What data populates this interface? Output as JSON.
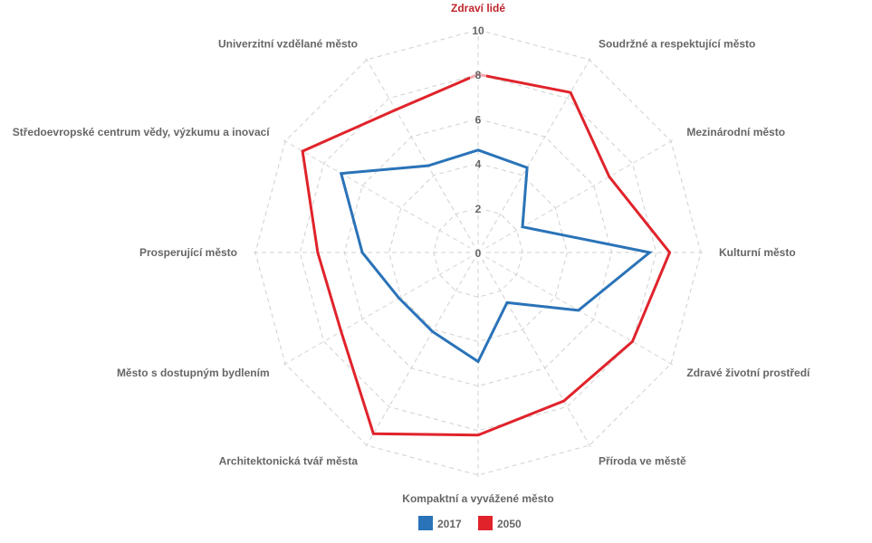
{
  "chart_data": {
    "type": "radar",
    "title": "",
    "axes": [
      "Zdraví lidé",
      "Soudržné a respektující město",
      "Mezinárodní město",
      "Kulturní město",
      "Zdravé životní prostředí",
      "Příroda ve městě",
      "Kompaktní a vyvážené město",
      "Architektonická tvář města",
      "Město s dostupným bydlením",
      "Prosperující město",
      "Středoevropské centrum vědy, výzkumu a inovací",
      "Univerzitní vzdělané město"
    ],
    "highlighted_axis_color": "#c0262d",
    "rlim": [
      0,
      10
    ],
    "ticks": [
      "0",
      "2",
      "4",
      "6",
      "8",
      "10"
    ],
    "grid": true,
    "legend_position": "bottom",
    "series": [
      {
        "name": "2017",
        "color": "#2a73b8",
        "values": [
          4.6,
          4.4,
          2.3,
          7.7,
          5.2,
          2.6,
          4.9,
          4.1,
          4.1,
          5.2,
          7.1,
          4.5
        ]
      },
      {
        "name": "2050",
        "color": "#e0232b",
        "values": [
          8.0,
          8.3,
          6.8,
          8.6,
          8.0,
          7.7,
          8.2,
          9.4,
          7.1,
          7.2,
          9.1,
          7.4
        ]
      }
    ]
  }
}
